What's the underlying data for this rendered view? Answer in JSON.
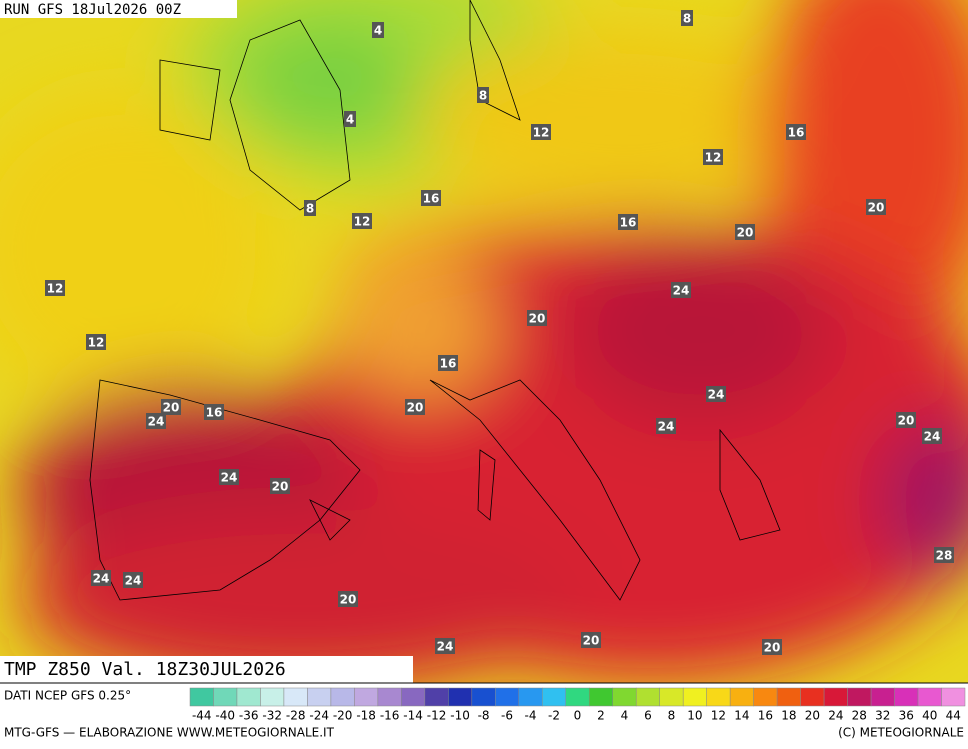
{
  "header": {
    "run": "RUN GFS 18Jul2026 00Z"
  },
  "map": {
    "field": "TMP Z850 Val. 18Z30JUL2026",
    "contour_labels": [
      4,
      4,
      8,
      8,
      8,
      12,
      12,
      12,
      12,
      12,
      16,
      16,
      16,
      16,
      16,
      20,
      20,
      20,
      20,
      20,
      20,
      20,
      20,
      20,
      20,
      24,
      24,
      24,
      24,
      24,
      24,
      24,
      24,
      24,
      28
    ]
  },
  "colorbar": {
    "source": "DATI NCEP GFS 0.25°",
    "labels": [
      -44,
      -40,
      -36,
      -32,
      -28,
      -24,
      -20,
      -18,
      -16,
      -14,
      -12,
      -10,
      -8,
      -6,
      -4,
      -2,
      0,
      2,
      4,
      6,
      8,
      10,
      12,
      14,
      16,
      18,
      20,
      24,
      28,
      32,
      36,
      40,
      44
    ],
    "colors": [
      "#40c8a0",
      "#70d8b8",
      "#a0e8d0",
      "#c8f0e8",
      "#d8e8f8",
      "#c8d0f0",
      "#b8b8e8",
      "#c0a8e0",
      "#a888d0",
      "#8868c0",
      "#5040a8",
      "#2030b0",
      "#1850d0",
      "#2070e8",
      "#2898f0",
      "#30c0f0",
      "#30d880",
      "#40c830",
      "#80d830",
      "#b0e030",
      "#d8e828",
      "#f0f020",
      "#f8d818",
      "#f8b010",
      "#f88810",
      "#f06010",
      "#e83020",
      "#d81838",
      "#c01860",
      "#c82090",
      "#d830b8",
      "#e858d0",
      "#f090e0"
    ]
  },
  "footer": {
    "credit": "MTG-GFS — ELABORAZIONE WWW.METEOGIORNALE.IT",
    "copyright": "(C) METEOGIORNALE"
  }
}
